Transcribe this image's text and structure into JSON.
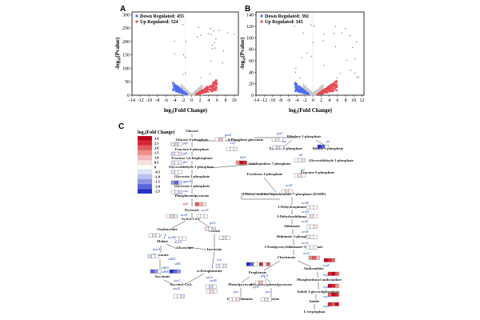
{
  "panels": {
    "a": {
      "label": "A",
      "down_label": "Down Regulated: 455",
      "up_label": "Up Regulated: 524",
      "xlabel": "log₂(Fold Change)",
      "ylabel": "-log₁₀(Pvalue)",
      "xticks": [
        "-14",
        "-12",
        "-10",
        "-8",
        "-6",
        "-4",
        "-2",
        "0",
        "2",
        "4",
        "6",
        "8",
        "10"
      ],
      "yticks": [
        "0",
        "50",
        "100",
        "150",
        "200",
        "250",
        "300"
      ],
      "xlim": [
        -14,
        11
      ],
      "ylim": [
        0,
        310
      ],
      "down_color": "#4e6cf0",
      "up_color": "#e8474f"
    },
    "b": {
      "label": "B",
      "down_label": "Down Regulated: 392",
      "up_label": "Up Regulated: 343",
      "xlabel": "log₂(Fold Change)",
      "ylabel": "-log₁₀(Pvalue)",
      "xticks": [
        "-14",
        "-12",
        "-10",
        "-8",
        "-6",
        "-4",
        "-2",
        "0",
        "2",
        "4",
        "6",
        "8",
        "10",
        "12"
      ],
      "yticks": [
        "0",
        "20",
        "40",
        "60",
        "80",
        "100",
        "120",
        "140"
      ],
      "xlim": [
        -14,
        12.5
      ],
      "ylim": [
        0,
        145
      ],
      "down_color": "#4e6cf0",
      "up_color": "#e8474f"
    },
    "c": {
      "label": "C",
      "scale_title": "log₂(Fold Change)",
      "scale_values": [
        "3.0",
        "2.5",
        "2.0",
        "1.5",
        "1.0",
        "0.5",
        "0",
        "-0.5",
        "-1.0",
        "-1.5",
        "-2.0",
        "-2.5"
      ],
      "metabolites": {
        "glucose": "Glucose",
        "g6p": "Glucose 6-phosphate",
        "f6p": "Fructose 6-phosphate",
        "fbp": "Fructose 1,6-bisphosphate",
        "gap": "Glyceraldehyde 3-phosphate",
        "g3p": "Glycerate 3-phosphate",
        "g2p": "Glycerate 2-phosphate",
        "pep": "Phosphoenolpyruvate",
        "pyruvate": "Pyruvate",
        "acetylcoa": "Acetyl-CoA",
        "citrate": "Citrate",
        "isocitrate": "Isocitrate",
        "akg": "α-Ketoglutarate",
        "succoa": "Succinyl-CoA",
        "succinate": "Succinate",
        "fumarate": "Fumarate",
        "malate": "Malate",
        "oxaloacetate": "Oxaloacetate",
        "glyoxylate": "Glyoxylate",
        "pgl": "6-Phosphate gluconate",
        "ribulose": "Ribulose 5-phosphate",
        "xylulose": "Xylulose 5-phosphate",
        "ribose": "Ribose 5-phosphate",
        "s7p": "Sedoheptulose 7-phosphate",
        "gap2": "Glyceraldehyde 3-phosphate",
        "f6p2": "Fructose 6-phosphate",
        "e4p": "Erythrose 4-phosphate",
        "dahp": "3-Deoxy-arabino-heptulosonate 7-phosphate (DAHP)",
        "dhq": "3-Dehydroquinate",
        "dhs": "3-Dehydroshikimate",
        "shikimate": "Shikimate",
        "s3p": "Shikimate 3-phosphate",
        "epsp": "5-Enolpyruvylshikimate-3-phosphate",
        "chorismate": "Chorismate",
        "prephenate": "Prephenate",
        "anthranilate": "Anthranilate",
        "pra": "Phosphoribosyl anthranilate",
        "igp": "Indole 3-glycerolphosphate",
        "indole": "Indole",
        "trp": "L-tryptophan",
        "phenylpyruvate": "Phenylpyruvate",
        "hpp": "4-Hydroxyphenylpyruvate",
        "phe": "L-phenylalanine",
        "tyr": "L-tyrosine"
      },
      "genes": {
        "pgi": "pgi",
        "pfk": "pfk",
        "fba": "fba",
        "gpmA": "gpmA",
        "eno": "eno",
        "pyk": "pyk",
        "aceE": "aceE",
        "aceF": "aceF",
        "gltA": "gltA",
        "acn": "acn",
        "icd": "icd",
        "sucA": "sucA",
        "sucB": "sucB",
        "sucC": "sucC",
        "sucD": "sucD",
        "sdhA": "sdhA",
        "sdhB": "sdhB",
        "sdhC": "sdhC",
        "sdhD": "sdhD",
        "fumA": "fumA",
        "mdh": "mdh",
        "aceA": "aceA",
        "aceB": "aceB",
        "gntZ": "gntZ",
        "zwf": "zwf",
        "gnd": "gnd",
        "rpe": "rpe",
        "rpi": "rpi",
        "tkt": "tkt",
        "tal": "tal",
        "aroF": "aroF",
        "aroB": "aroB",
        "aroD": "aroD",
        "aroE": "aroE",
        "aroK": "aroK",
        "aroA": "aroA",
        "aroC": "aroC",
        "pheA": "pheA",
        "tyrA": "tyrA",
        "trpE": "trpE",
        "trpD": "trpD",
        "trpC": "trpC",
        "trpA": "trpA",
        "trpB": "trpB",
        "pat": "pat",
        "pat2": "pat",
        "tktA": "tktA"
      }
    }
  },
  "colors": {
    "down": "#4e6cf0",
    "up": "#e8474f",
    "arrow": "#333333",
    "gene": "#1f4fb8",
    "gene_red": "#c8102e"
  }
}
